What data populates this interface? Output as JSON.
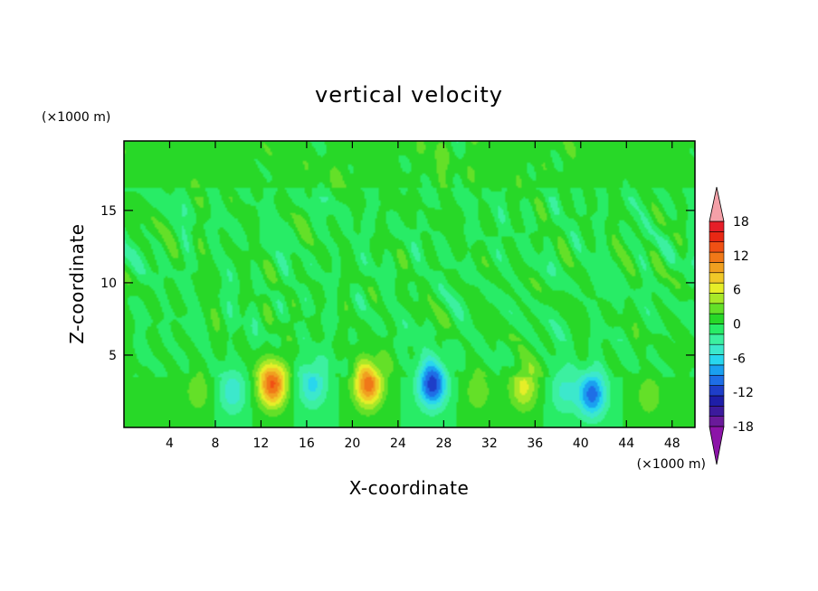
{
  "chart_data": {
    "type": "heatmap",
    "title": "vertical velocity",
    "xlabel": "X-coordinate",
    "ylabel": "Z-coordinate",
    "x_unit": "(×1000 m)",
    "y_unit": "(×1000 m)",
    "xlim": [
      0,
      50
    ],
    "ylim": [
      0,
      19.8
    ],
    "x_ticks": [
      4,
      8,
      12,
      16,
      20,
      24,
      28,
      32,
      36,
      40,
      44,
      48
    ],
    "y_ticks": [
      5,
      10,
      15
    ],
    "x_tick_labels": [
      "4",
      "8",
      "12",
      "16",
      "20",
      "24",
      "28",
      "32",
      "36",
      "40",
      "44",
      "48"
    ],
    "y_tick_labels": [
      "5",
      "10",
      "15"
    ],
    "grid": false,
    "colorbar": {
      "min": -21,
      "max": 21,
      "step": 3,
      "extend": "both",
      "tick_labels": [
        "18",
        "12",
        "6",
        "0",
        "-6",
        "-12",
        "-18"
      ],
      "tick_values": [
        18,
        12,
        6,
        0,
        -6,
        -12,
        -18
      ],
      "colors": [
        "#6a1a9a",
        "#3c1a9c",
        "#1e1ea8",
        "#1e3ec8",
        "#1e6ee6",
        "#1aa0f0",
        "#28d6ee",
        "#3ce8cc",
        "#3cf0a0",
        "#28ec66",
        "#28d828",
        "#64e028",
        "#a8e828",
        "#e6ee28",
        "#f0c828",
        "#f0a020",
        "#f07818",
        "#f05014",
        "#e82814",
        "#e61e28"
      ],
      "extend_high_color": "#f4a0a8",
      "extend_low_color": "#8c14a8"
    },
    "features": [
      {
        "kind": "updraft",
        "x": 13,
        "z": 3.0,
        "peak": 13
      },
      {
        "kind": "updraft",
        "x": 21.4,
        "z": 3.0,
        "peak": 12
      },
      {
        "kind": "updraft",
        "x": 35,
        "z": 2.8,
        "peak": 6
      },
      {
        "kind": "updraft",
        "x": 6.5,
        "z": 2.5,
        "peak": 3
      },
      {
        "kind": "updraft",
        "x": 46,
        "z": 2.2,
        "peak": 3
      },
      {
        "kind": "updraft",
        "x": 31,
        "z": 2.5,
        "peak": 3
      },
      {
        "kind": "downdraft",
        "x": 27,
        "z": 3.0,
        "peak": -12
      },
      {
        "kind": "downdraft",
        "x": 41,
        "z": 2.3,
        "peak": -10
      },
      {
        "kind": "downdraft",
        "x": 16.5,
        "z": 3.0,
        "peak": -6
      },
      {
        "kind": "downdraft",
        "x": 9.5,
        "z": 2.5,
        "peak": -5
      },
      {
        "kind": "downdraft",
        "x": 38.5,
        "z": 2.5,
        "peak": -4
      }
    ]
  }
}
